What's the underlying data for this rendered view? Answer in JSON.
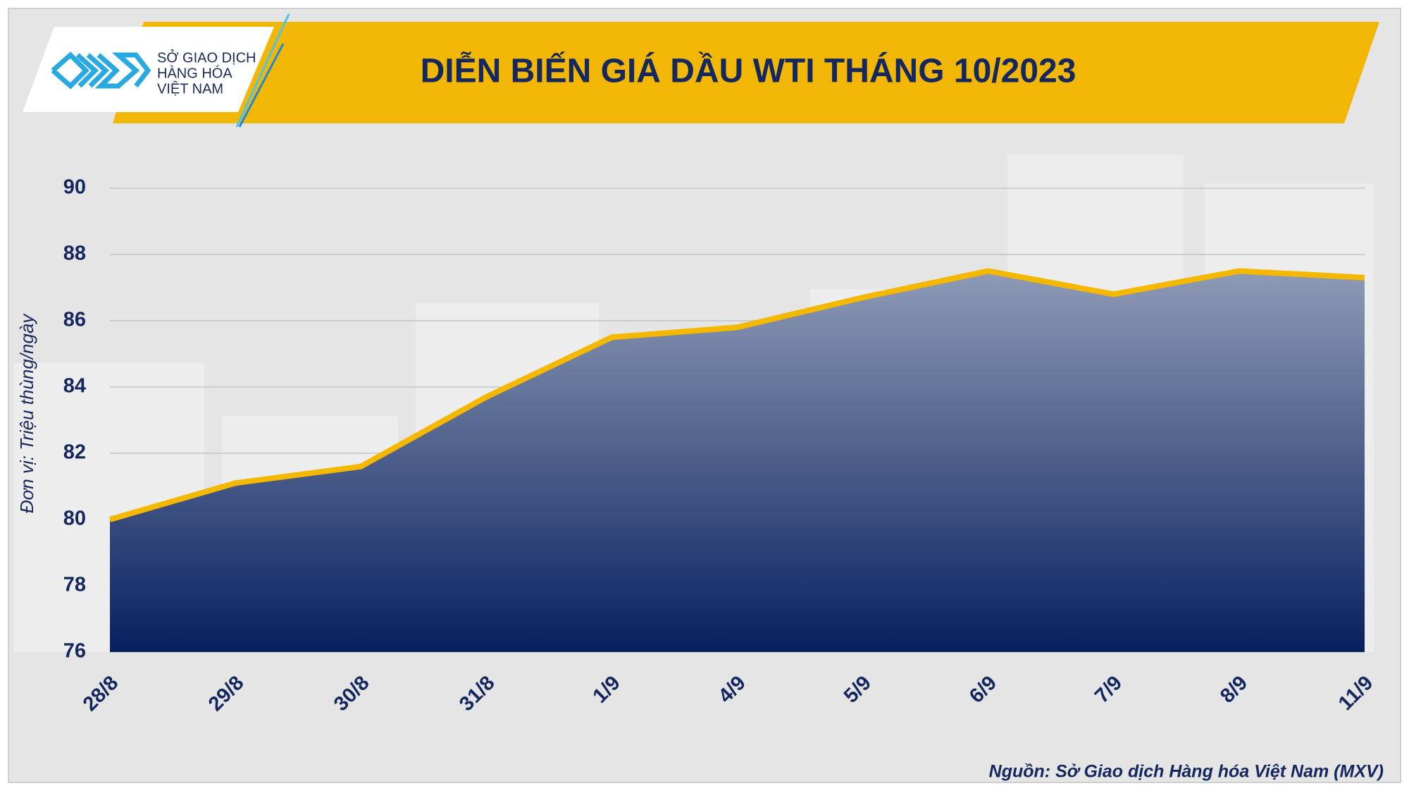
{
  "logo": {
    "lines": [
      "SỞ GIAO DỊCH",
      "HÀNG HÓA",
      "VIỆT NAM"
    ]
  },
  "chart_data": {
    "type": "area",
    "title": "DIỄN BIẾN GIÁ DẦU WTI THÁNG 10/2023",
    "y_label": "Đơn vị: Triệu thùng/ngày",
    "source": "Nguồn: Sở Giao dịch Hàng hóa Việt Nam (MXV)",
    "categories": [
      "28/8",
      "29/8",
      "30/8",
      "31/8",
      "1/9",
      "4/9",
      "5/9",
      "6/9",
      "7/9",
      "8/9",
      "11/9"
    ],
    "values": [
      80.0,
      81.1,
      81.6,
      83.7,
      85.5,
      85.8,
      86.7,
      87.5,
      86.8,
      87.5,
      87.3
    ],
    "color": "#f5b800",
    "fill_top": "#8e9bb6",
    "fill_bottom": "#08205f",
    "ylim": [
      76,
      90
    ],
    "yticks": [
      76,
      78,
      80,
      82,
      84,
      86,
      88,
      90
    ],
    "grid": true
  }
}
